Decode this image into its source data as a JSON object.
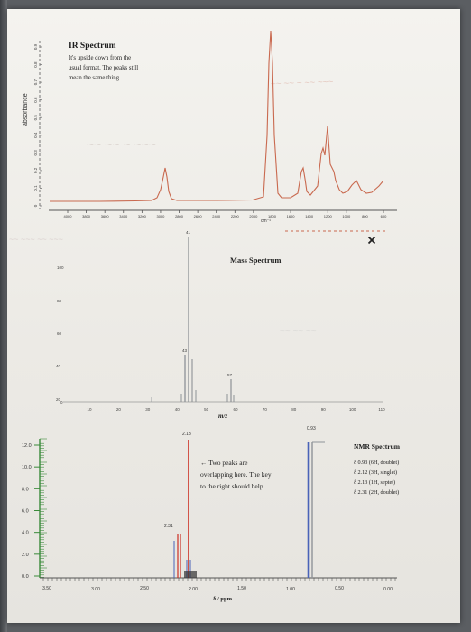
{
  "ir": {
    "title": "IR Spectrum",
    "note_lines": [
      "It's upside down from the",
      "usual format. The peaks still",
      "mean the same thing."
    ],
    "y_axis_label": "absorbance",
    "x_axis_unit": "cm⁻¹",
    "y_ticks": [
      "0.9",
      "0.8",
      "0.7",
      "0.6",
      "0.5",
      "0.4",
      "0.3",
      "0.2",
      "0.1",
      "0"
    ],
    "x_ticks": [
      "4000",
      "3800",
      "3600",
      "3400",
      "3200",
      "3000",
      "2800",
      "2600",
      "2400",
      "2200",
      "2000",
      "1800",
      "1600",
      "1400",
      "1200",
      "1000",
      "800",
      "600"
    ],
    "line_color": "#c9694f"
  },
  "ms": {
    "title": "Mass Spectrum",
    "x_axis_label": "m/z",
    "y_ticks": [
      "100",
      "80",
      "60",
      "40",
      "20",
      "0"
    ],
    "x_ticks": [
      "10",
      "20",
      "30",
      "40",
      "50",
      "60",
      "70",
      "80",
      "90",
      "100",
      "110"
    ],
    "peak_labels": [
      "41",
      "43",
      "57"
    ],
    "close_icon": "x-icon"
  },
  "nmr": {
    "title": "NMR Spectrum",
    "x_axis_label": "δ / ppm",
    "y_ticks": [
      "12.0",
      "10.0",
      "8.0",
      "6.0",
      "4.0",
      "2.0",
      "0.0"
    ],
    "x_ticks": [
      "3.50",
      "3.00",
      "2.50",
      "2.00",
      "1.50",
      "1.00",
      "0.50",
      "0.00"
    ],
    "peak_labels": {
      "p213": "2.13",
      "p231": "2.31",
      "p093": "0.93"
    },
    "note_lines": [
      "← Two peaks are",
      "overlapping here. The key",
      "to the right should help."
    ],
    "key_lines": [
      "δ 0.93 (6H, doublet)",
      "δ 2.12 (3H, singlet)",
      "δ 2.13 (1H, septet)",
      "δ 2.31 (2H, doublet)"
    ],
    "colors": {
      "blue": "#4a63b8",
      "red": "#cc2f23",
      "grey": "#8f9398"
    }
  }
}
